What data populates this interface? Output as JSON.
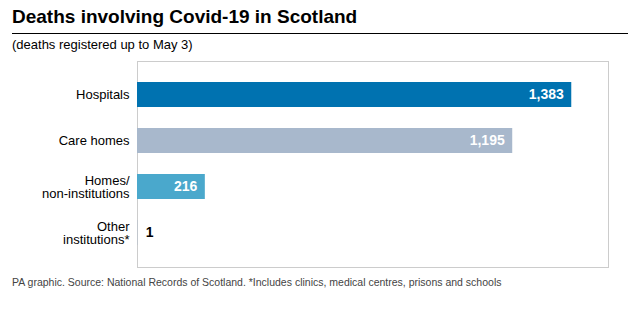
{
  "chart_data": {
    "type": "bar",
    "orientation": "horizontal",
    "title": "Deaths involving Covid-19 in Scotland",
    "subtitle": "(deaths registered up to May 3)",
    "footnote": "PA graphic. Source: National Records of Scotland. *Includes clinics, medical centres, prisons and schools",
    "categories": [
      "Hospitals",
      "Care homes",
      "Homes/\nnon-institutions",
      "Other\ninstitutions*"
    ],
    "values": [
      1383,
      1195,
      216,
      1
    ],
    "value_labels": [
      "1,383",
      "1,195",
      "216",
      "1"
    ],
    "data_labels": true,
    "colors": [
      "#0072b0",
      "#a8b8cc",
      "#4aa8cc",
      "#a8b8cc"
    ],
    "xlim": [
      0,
      1500
    ],
    "tick_labels": "y",
    "grid": false
  }
}
